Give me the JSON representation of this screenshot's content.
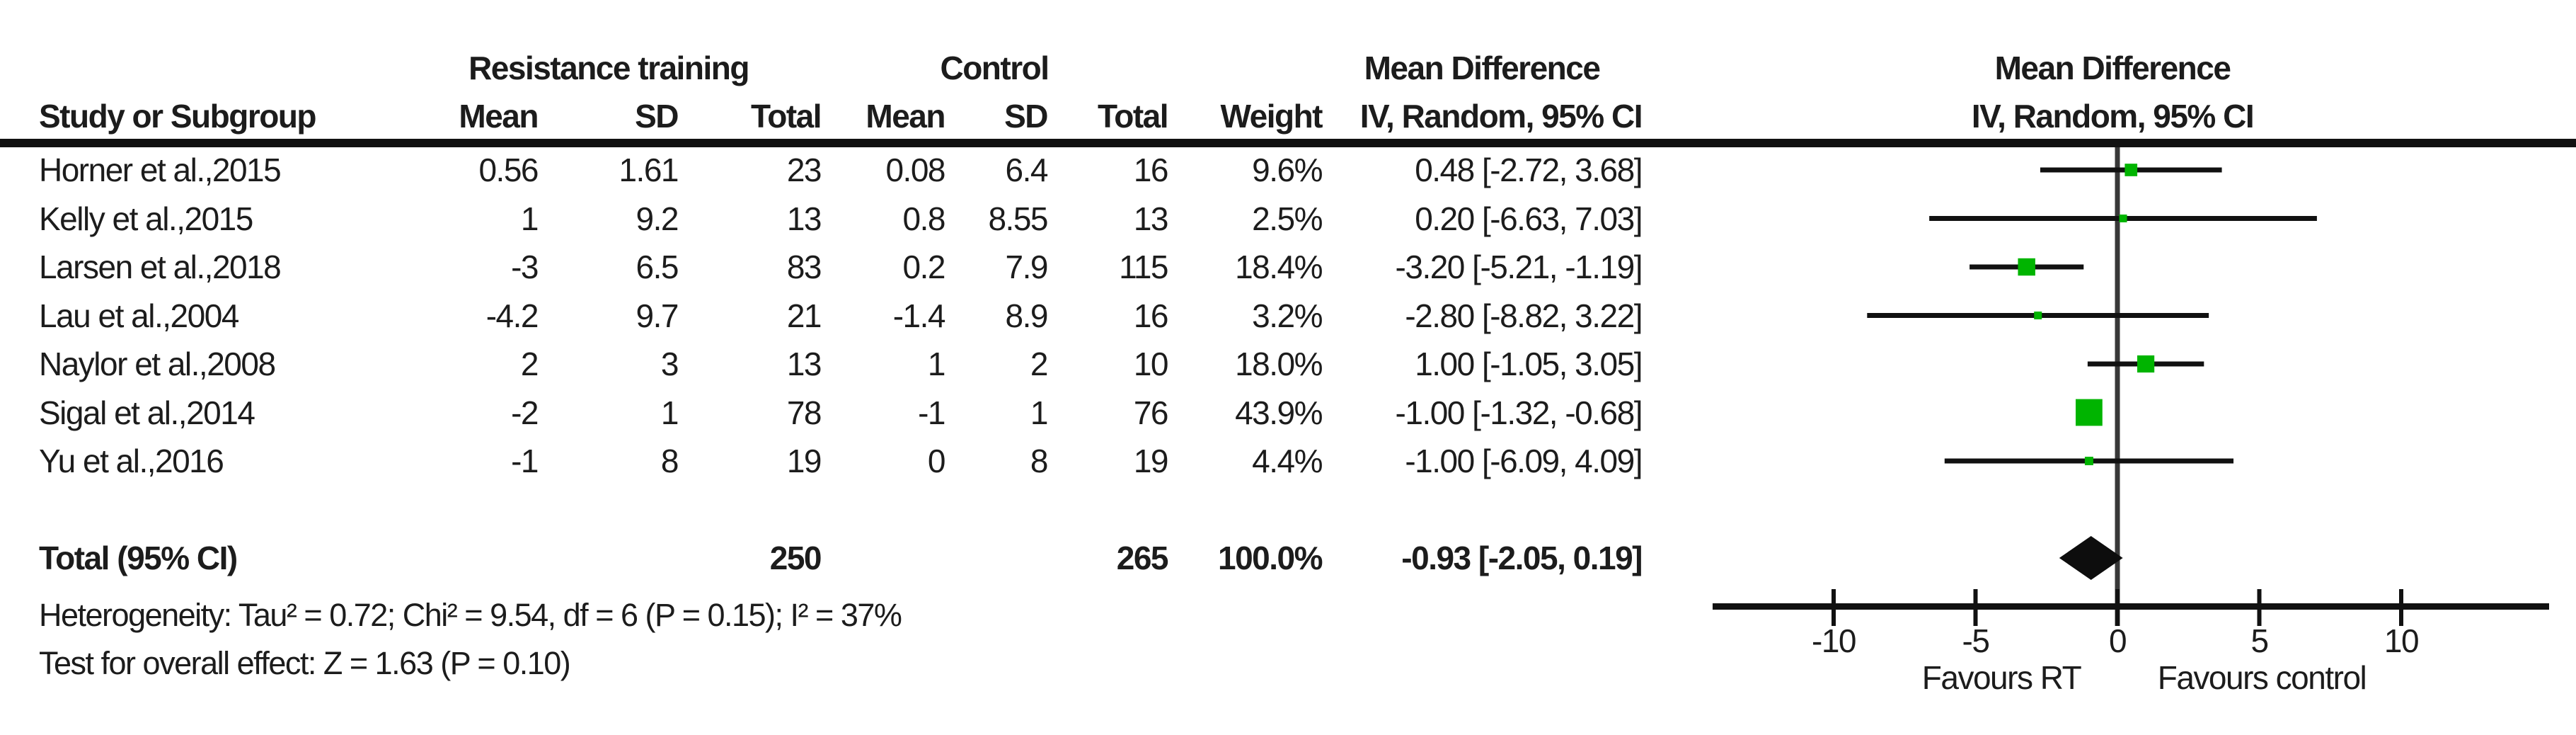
{
  "table": {
    "group1_header": "Resistance training",
    "group2_header": "Control",
    "effect_header": "Mean Difference",
    "effect_subheader": "IV, Random, 95% CI",
    "plot_header": "Mean Difference",
    "plot_subheader": "IV, Random, 95% CI",
    "columns": [
      "Study or Subgroup",
      "Mean",
      "SD",
      "Total",
      "Mean",
      "SD",
      "Total",
      "Weight",
      "IV, Random, 95% CI"
    ],
    "rows": [
      {
        "study": "Horner et al.,2015",
        "mean1": "0.56",
        "sd1": "1.61",
        "total1": "23",
        "mean2": "0.08",
        "sd2": "6.4",
        "total2": "16",
        "weight": "9.6%",
        "ci": "0.48 [-2.72, 3.68]"
      },
      {
        "study": "Kelly et al.,2015",
        "mean1": "1",
        "sd1": "9.2",
        "total1": "13",
        "mean2": "0.8",
        "sd2": "8.55",
        "total2": "13",
        "weight": "2.5%",
        "ci": "0.20 [-6.63, 7.03]"
      },
      {
        "study": "Larsen et al.,2018",
        "mean1": "-3",
        "sd1": "6.5",
        "total1": "83",
        "mean2": "0.2",
        "sd2": "7.9",
        "total2": "115",
        "weight": "18.4%",
        "ci": "-3.20 [-5.21, -1.19]"
      },
      {
        "study": "Lau et al.,2004",
        "mean1": "-4.2",
        "sd1": "9.7",
        "total1": "21",
        "mean2": "-1.4",
        "sd2": "8.9",
        "total2": "16",
        "weight": "3.2%",
        "ci": "-2.80 [-8.82, 3.22]"
      },
      {
        "study": "Naylor et al.,2008",
        "mean1": "2",
        "sd1": "3",
        "total1": "13",
        "mean2": "1",
        "sd2": "2",
        "total2": "10",
        "weight": "18.0%",
        "ci": "1.00 [-1.05, 3.05]"
      },
      {
        "study": "Sigal et al.,2014",
        "mean1": "-2",
        "sd1": "1",
        "total1": "78",
        "mean2": "-1",
        "sd2": "1",
        "total2": "76",
        "weight": "43.9%",
        "ci": "-1.00 [-1.32, -0.68]"
      },
      {
        "study": "Yu et al.,2016",
        "mean1": "-1",
        "sd1": "8",
        "total1": "19",
        "mean2": "0",
        "sd2": "8",
        "total2": "19",
        "weight": "4.4%",
        "ci": "-1.00 [-6.09, 4.09]"
      }
    ],
    "total_row": {
      "label": "Total (95% CI)",
      "total1": "250",
      "total2": "265",
      "weight": "100.0%",
      "ci": "-0.93 [-2.05, 0.19]"
    },
    "heterogeneity": "Heterogeneity: Tau² = 0.72; Chi² = 9.54, df = 6 (P = 0.15); I² = 37%",
    "overall_effect": "Test for overall effect: Z = 1.63 (P = 0.10)"
  },
  "chart_data": {
    "type": "forest",
    "effect_measure": "Mean Difference, IV, Random, 95% CI",
    "studies": [
      {
        "name": "Horner et al.,2015",
        "md": 0.48,
        "ci_low": -2.72,
        "ci_high": 3.68,
        "weight_pct": 9.6
      },
      {
        "name": "Kelly et al.,2015",
        "md": 0.2,
        "ci_low": -6.63,
        "ci_high": 7.03,
        "weight_pct": 2.5
      },
      {
        "name": "Larsen et al.,2018",
        "md": -3.2,
        "ci_low": -5.21,
        "ci_high": -1.19,
        "weight_pct": 18.4
      },
      {
        "name": "Lau et al.,2004",
        "md": -2.8,
        "ci_low": -8.82,
        "ci_high": 3.22,
        "weight_pct": 3.2
      },
      {
        "name": "Naylor et al.,2008",
        "md": 1.0,
        "ci_low": -1.05,
        "ci_high": 3.05,
        "weight_pct": 18.0
      },
      {
        "name": "Sigal et al.,2014",
        "md": -1.0,
        "ci_low": -1.32,
        "ci_high": -0.68,
        "weight_pct": 43.9
      },
      {
        "name": "Yu et al.,2016",
        "md": -1.0,
        "ci_low": -6.09,
        "ci_high": 4.09,
        "weight_pct": 4.4
      }
    ],
    "total": {
      "label": "Total (95% CI)",
      "md": -0.93,
      "ci_low": -2.05,
      "ci_high": 0.19,
      "weight_pct": 100.0
    },
    "axis_ticks": [
      -10,
      -5,
      0,
      5,
      10
    ],
    "axis_tick_labels": [
      "-10",
      "-5",
      "0",
      "5",
      "10"
    ],
    "xlim": [
      -14.3,
      15.2
    ],
    "favours_left": "Favours RT",
    "favours_right": "Favours control",
    "square_color": "#00b400",
    "line_color": "#111111",
    "zero_line_color": "#383838",
    "diamond_color": "#0d0d0d"
  }
}
